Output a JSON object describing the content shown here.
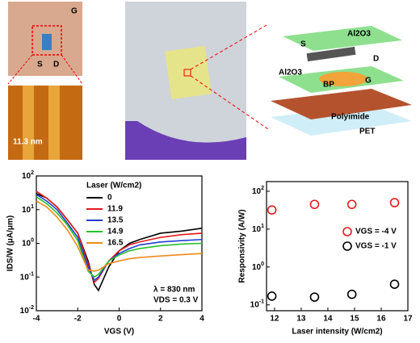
{
  "panels": {
    "optical": {
      "labels": [
        "G",
        "S",
        "D"
      ]
    },
    "afm": {
      "label": "11.3 nm"
    },
    "device": {
      "labels": [
        "Al2O3",
        "S",
        "D",
        "Al2O3",
        "BP",
        "G",
        "Polyimide",
        "PET"
      ]
    }
  },
  "chart_data": [
    {
      "type": "line",
      "x_label": "VGS (V)",
      "y_label": "IDS/W (μA/μm)",
      "log_y": true,
      "x": [
        -4,
        -3.5,
        -3,
        -2.5,
        -2,
        -1.5,
        -1.2,
        -1,
        -0.5,
        0,
        0.5,
        1,
        2,
        3,
        4
      ],
      "xlim": [
        -4,
        4
      ],
      "xticks": [
        -4,
        -2,
        0,
        2,
        4
      ],
      "ylim": [
        0.01,
        100
      ],
      "yticks": [
        {
          "value": 0.01,
          "label": "10^-2"
        },
        {
          "value": 0.1,
          "label": "10^-1"
        },
        {
          "value": 1,
          "label": "10^0"
        },
        {
          "value": 10,
          "label": "10^1"
        },
        {
          "value": 100,
          "label": "10^2"
        }
      ],
      "legend_title": "Laser (W/cm2)",
      "legend": "top-right",
      "annotations": [
        "λ = 830 nm",
        "VDS = 0.3 V"
      ],
      "series": [
        {
          "name": "0",
          "color": "#000000",
          "values": [
            30,
            22,
            12,
            5,
            2,
            0.3,
            0.06,
            0.04,
            0.2,
            0.6,
            1,
            1.3,
            2,
            2.3,
            2.8
          ]
        },
        {
          "name": "11.9",
          "color": "#e41a1c",
          "values": [
            35,
            22,
            12,
            5,
            2,
            0.25,
            0.07,
            0.09,
            0.3,
            0.6,
            0.9,
            1.1,
            1.5,
            1.8,
            2
          ]
        },
        {
          "name": "13.5",
          "color": "#1f3fd1",
          "values": [
            28,
            18,
            10,
            4,
            1.5,
            0.2,
            0.08,
            0.1,
            0.3,
            0.5,
            0.7,
            0.9,
            1.1,
            1.2,
            1.3
          ]
        },
        {
          "name": "14.9",
          "color": "#2bbf2b",
          "values": [
            24,
            15,
            8,
            3.5,
            1.2,
            0.15,
            0.1,
            0.12,
            0.3,
            0.45,
            0.6,
            0.7,
            0.85,
            0.95,
            1
          ]
        },
        {
          "name": "16.5",
          "color": "#f08a1c",
          "values": [
            18,
            12,
            6,
            2.5,
            0.8,
            0.16,
            0.15,
            0.16,
            0.25,
            0.3,
            0.35,
            0.38,
            0.42,
            0.46,
            0.5
          ]
        }
      ]
    },
    {
      "type": "scatter",
      "x_label": "Laser intensity (W/cm2)",
      "y_label": "Responsivity (A/W)",
      "log_y": true,
      "xlim": [
        11.7,
        17
      ],
      "xticks": [
        12,
        13,
        14,
        15,
        16,
        17
      ],
      "ylim": [
        0.07,
        180
      ],
      "yticks": [
        {
          "value": 0.1,
          "label": "10^-1"
        },
        {
          "value": 1,
          "label": "10^0"
        },
        {
          "value": 10,
          "label": "10^1"
        },
        {
          "value": 100,
          "label": "10^2"
        }
      ],
      "legend": "center-right",
      "series": [
        {
          "name": "VGS = -4 V",
          "color": "#e41a1c",
          "x": [
            11.9,
            13.5,
            14.9,
            16.5
          ],
          "values": [
            32,
            45,
            45,
            50
          ]
        },
        {
          "name": "VGS = -1 V",
          "color": "#000000",
          "x": [
            11.9,
            13.5,
            14.9,
            16.5
          ],
          "values": [
            0.17,
            0.16,
            0.19,
            0.35
          ]
        }
      ]
    }
  ]
}
